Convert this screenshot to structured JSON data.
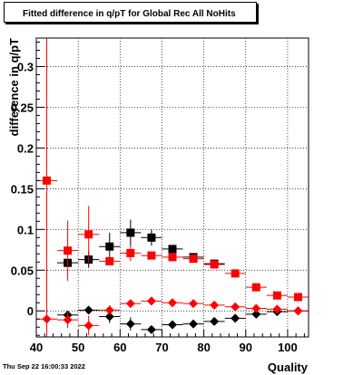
{
  "header": {
    "title": "Fitted difference in q/pT for Global Rec All NoHits",
    "date": "Thu Sep 22 16:00:33 2022"
  },
  "chart_data": {
    "type": "scatter",
    "xlabel": "Quality",
    "ylabel": "difference in q/pT",
    "xlim": [
      40,
      105
    ],
    "ylim": [
      -0.032,
      0.335
    ],
    "xticks": [
      40,
      50,
      60,
      70,
      80,
      90,
      100
    ],
    "yticks": [
      0,
      0.05,
      0.1,
      0.15,
      0.2,
      0.25,
      0.3
    ],
    "ytick_labels": [
      "0",
      "0.05",
      "0.1",
      "0.15",
      "0.2",
      "0.25",
      "0.3"
    ],
    "grid": true,
    "series": [
      {
        "marker": "square",
        "color": "#000000",
        "x": [
          47.5,
          52.5,
          57.5,
          62.5,
          67.5,
          72.5,
          77.5,
          82.5
        ],
        "y": [
          0.059,
          0.063,
          0.079,
          0.096,
          0.09,
          0.076,
          0.066,
          0.058
        ],
        "yerr": [
          0.0,
          0.01,
          0.017,
          0.016,
          0.01,
          0.0,
          0.0,
          0.0
        ]
      },
      {
        "marker": "square",
        "color": "#ff0000",
        "x": [
          42.5,
          47.5,
          52.5,
          57.5,
          62.5,
          67.5,
          72.5,
          77.5,
          82.5,
          87.5,
          92.5,
          97.5,
          102.5
        ],
        "y": [
          0.16,
          0.074,
          0.094,
          0.061,
          0.071,
          0.068,
          0.066,
          0.064,
          0.057,
          0.046,
          0.029,
          0.019,
          0.017
        ],
        "yerr": [
          0.3,
          0.037,
          0.035,
          0.0,
          0.01,
          0.0,
          0.0,
          0.0,
          0.0,
          0.0,
          0.0,
          0.0,
          0.0
        ]
      },
      {
        "marker": "diamond",
        "color": "#000000",
        "x": [
          47.5,
          52.5,
          57.5,
          62.5,
          67.5,
          72.5,
          77.5,
          82.5,
          87.5,
          92.5,
          97.5,
          102.5
        ],
        "y": [
          -0.005,
          0.001,
          -0.007,
          -0.016,
          -0.023,
          -0.017,
          -0.016,
          -0.013,
          -0.009,
          -0.004,
          -0.001,
          0.0
        ],
        "yerr": [
          0.0,
          0.0,
          0.008,
          0.008,
          0.0,
          0.0,
          0.0,
          0.0,
          0.0,
          0.0,
          0.0,
          0.0
        ]
      },
      {
        "marker": "diamond",
        "color": "#ff0000",
        "x": [
          42.5,
          47.5,
          52.5,
          57.5,
          62.5,
          67.5,
          72.5,
          77.5,
          82.5,
          87.5,
          92.5,
          97.5,
          102.5
        ],
        "y": [
          -0.01,
          -0.011,
          -0.018,
          0.001,
          0.009,
          0.012,
          0.01,
          0.009,
          0.007,
          0.005,
          0.003,
          0.002,
          0.0
        ],
        "yerr": [
          0.0,
          0.01,
          0.012,
          0.006,
          0.0,
          0.0,
          0.0,
          0.0,
          0.0,
          0.0,
          0.0,
          0.0,
          0.0
        ]
      }
    ]
  }
}
